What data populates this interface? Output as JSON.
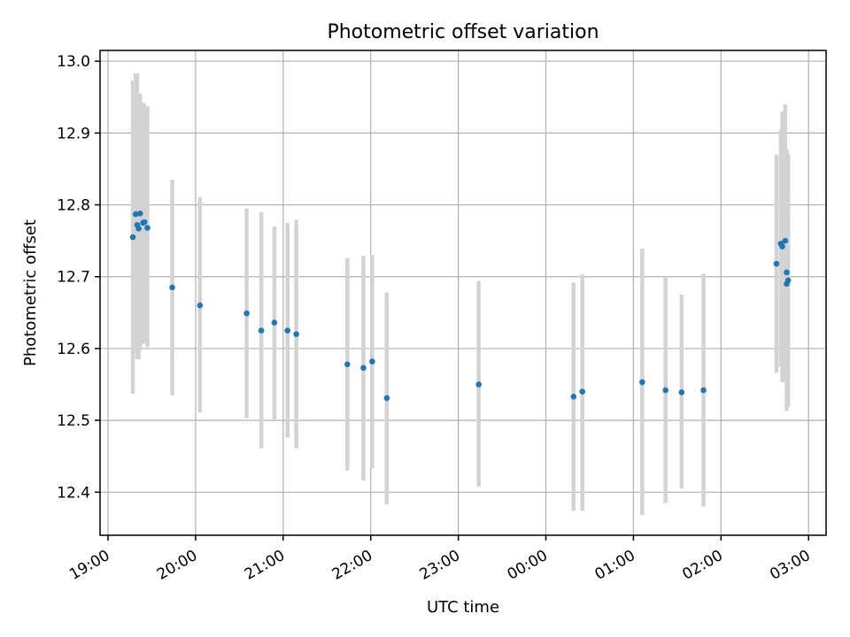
{
  "chart_data": {
    "type": "scatter",
    "title": "Photometric offset variation",
    "xlabel": "UTC time",
    "ylabel": "Photometric offset",
    "x_axis_kind": "time",
    "xlim": [
      "19:00",
      "03:12"
    ],
    "ylim": [
      12.34,
      13.015
    ],
    "x_ticks": [
      "19:00",
      "20:00",
      "21:00",
      "22:00",
      "23:00",
      "00:00",
      "01:00",
      "02:00",
      "03:00"
    ],
    "y_ticks": [
      12.4,
      12.5,
      12.6,
      12.7,
      12.8,
      12.9,
      13.0
    ],
    "y_tick_labels": [
      "12.4",
      "12.5",
      "12.6",
      "12.7",
      "12.8",
      "12.9",
      "13.0"
    ],
    "grid": true,
    "point_color": "#1f77b4",
    "errorbar_color": "#d3d3d3",
    "series": [
      {
        "points": [
          {
            "t": "19:17",
            "y": 12.755,
            "lo": 12.537,
            "hi": 12.973
          },
          {
            "t": "19:19",
            "y": 12.787,
            "lo": 12.597,
            "hi": 12.983
          },
          {
            "t": "19:20",
            "y": 12.772,
            "lo": 12.585,
            "hi": 12.983
          },
          {
            "t": "19:21",
            "y": 12.767,
            "lo": 12.585,
            "hi": 12.955
          },
          {
            "t": "19:22",
            "y": 12.788,
            "lo": 12.597,
            "hi": 12.955
          },
          {
            "t": "19:24",
            "y": 12.775,
            "lo": 12.607,
            "hi": 12.942
          },
          {
            "t": "19:25",
            "y": 12.776,
            "lo": 12.607,
            "hi": 12.94
          },
          {
            "t": "19:27",
            "y": 12.768,
            "lo": 12.602,
            "hi": 12.937
          },
          {
            "t": "19:44",
            "y": 12.685,
            "lo": 12.535,
            "hi": 12.835
          },
          {
            "t": "20:03",
            "y": 12.66,
            "lo": 12.511,
            "hi": 12.811
          },
          {
            "t": "20:35",
            "y": 12.649,
            "lo": 12.503,
            "hi": 12.795
          },
          {
            "t": "20:45",
            "y": 12.625,
            "lo": 12.461,
            "hi": 12.79
          },
          {
            "t": "20:54",
            "y": 12.636,
            "lo": 12.5,
            "hi": 12.77
          },
          {
            "t": "21:03",
            "y": 12.625,
            "lo": 12.476,
            "hi": 12.775
          },
          {
            "t": "21:09",
            "y": 12.62,
            "lo": 12.461,
            "hi": 12.779
          },
          {
            "t": "21:44",
            "y": 12.578,
            "lo": 12.43,
            "hi": 12.726
          },
          {
            "t": "21:55",
            "y": 12.573,
            "lo": 12.416,
            "hi": 12.729
          },
          {
            "t": "22:01",
            "y": 12.582,
            "lo": 12.433,
            "hi": 12.73
          },
          {
            "t": "22:11",
            "y": 12.531,
            "lo": 12.383,
            "hi": 12.678
          },
          {
            "t": "23:14",
            "y": 12.55,
            "lo": 12.408,
            "hi": 12.694
          },
          {
            "t": "00:19",
            "y": 12.533,
            "lo": 12.374,
            "hi": 12.692
          },
          {
            "t": "00:25",
            "y": 12.54,
            "lo": 12.374,
            "hi": 12.703
          },
          {
            "t": "01:06",
            "y": 12.553,
            "lo": 12.368,
            "hi": 12.739
          },
          {
            "t": "01:22",
            "y": 12.542,
            "lo": 12.385,
            "hi": 12.7
          },
          {
            "t": "01:33",
            "y": 12.539,
            "lo": 12.405,
            "hi": 12.675
          },
          {
            "t": "01:48",
            "y": 12.542,
            "lo": 12.38,
            "hi": 12.704
          },
          {
            "t": "02:38",
            "y": 12.718,
            "lo": 12.566,
            "hi": 12.87
          },
          {
            "t": "02:41",
            "y": 12.746,
            "lo": 12.575,
            "hi": 12.905
          },
          {
            "t": "02:42",
            "y": 12.742,
            "lo": 12.553,
            "hi": 12.93
          },
          {
            "t": "02:44",
            "y": 12.75,
            "lo": 12.56,
            "hi": 12.94
          },
          {
            "t": "02:45",
            "y": 12.69,
            "lo": 12.513,
            "hi": 12.868
          },
          {
            "t": "02:45",
            "y": 12.706,
            "lo": 12.535,
            "hi": 12.878
          },
          {
            "t": "02:46",
            "y": 12.695,
            "lo": 12.519,
            "hi": 12.871
          }
        ]
      }
    ]
  }
}
